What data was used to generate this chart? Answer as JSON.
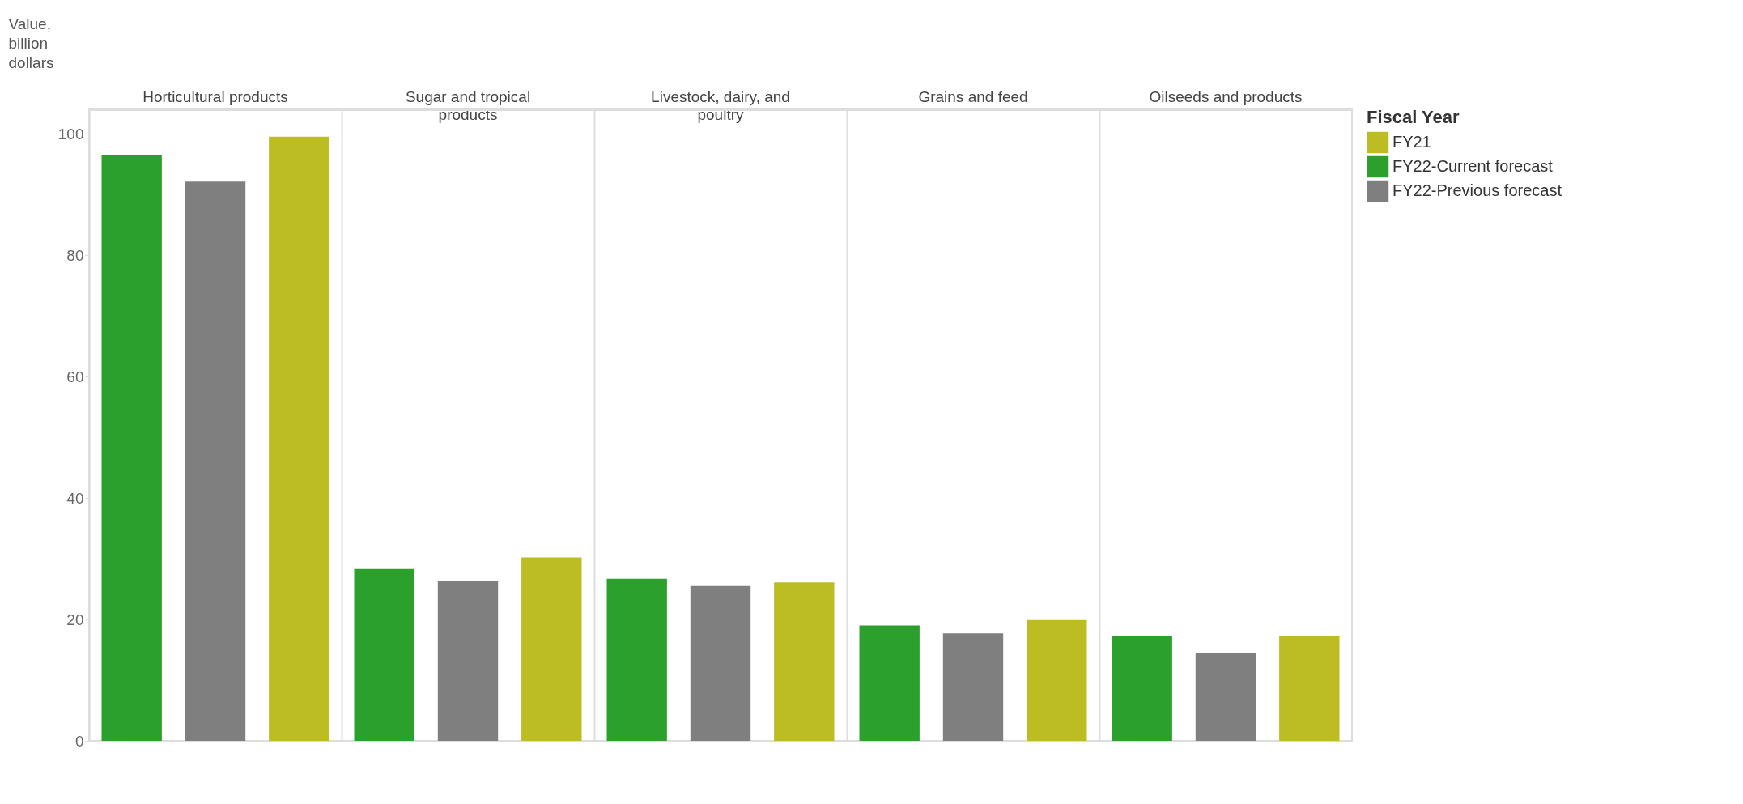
{
  "chart_data": {
    "type": "bar",
    "ylabel": "Value, billion dollars",
    "legend_title": "Fiscal Year",
    "categories": [
      "Horticultural products",
      "Sugar and tropical products",
      "Livestock, dairy, and poultry",
      "Grains and feed",
      "Oilseeds and products"
    ],
    "series": [
      {
        "name": "FY22-Current forecast",
        "color": "#2ca02c",
        "values": [
          96.5,
          28.3,
          26.7,
          19.0,
          17.3
        ]
      },
      {
        "name": "FY22-Previous forecast",
        "color": "#7f7f7f",
        "values": [
          92.1,
          26.4,
          25.5,
          17.7,
          14.4
        ]
      },
      {
        "name": "FY21",
        "color": "#bcbd22",
        "values": [
          99.5,
          30.2,
          26.1,
          19.9,
          17.3
        ]
      }
    ],
    "ylim": [
      0,
      104
    ],
    "yticks": [
      0,
      20,
      40,
      60,
      80,
      100
    ],
    "grid": "x",
    "legend": "right"
  }
}
